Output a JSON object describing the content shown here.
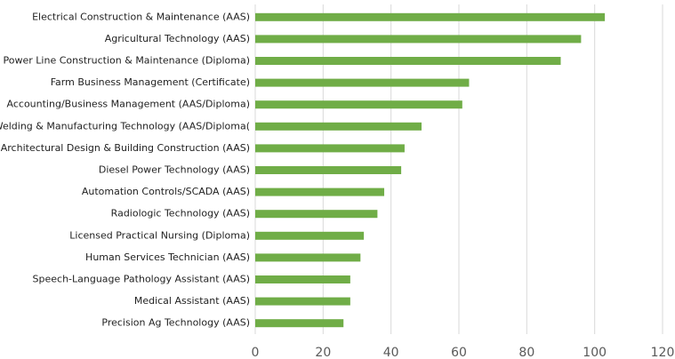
{
  "chart_data": {
    "type": "bar",
    "orientation": "horizontal",
    "categories": [
      "Electrical Construction & Maintenance (AAS)",
      "Agricultural Technology (AAS)",
      "Power Line Construction & Maintenance (Diploma)",
      "Farm Business Management (Certificate)",
      "Accounting/Business Management (AAS/Diploma)",
      "Welding & Manufacturing Technology (AAS/Diploma(",
      "Architectural Design & Building Construction (AAS)",
      "Diesel Power Technology (AAS)",
      "Automation Controls/SCADA (AAS)",
      "Radiologic Technology (AAS)",
      "Licensed Practical Nursing (Diploma)",
      "Human Services Technician (AAS)",
      "Speech-Language Pathology Assistant (AAS)",
      "Medical Assistant (AAS)",
      "Precision Ag Technology (AAS)"
    ],
    "values": [
      103,
      96,
      90,
      63,
      61,
      49,
      44,
      43,
      38,
      36,
      32,
      31,
      28,
      28,
      26
    ],
    "color": "#70ad47",
    "xlim": [
      0,
      120
    ],
    "xticks": [
      0,
      20,
      40,
      60,
      80,
      100,
      120
    ],
    "grid": true
  }
}
